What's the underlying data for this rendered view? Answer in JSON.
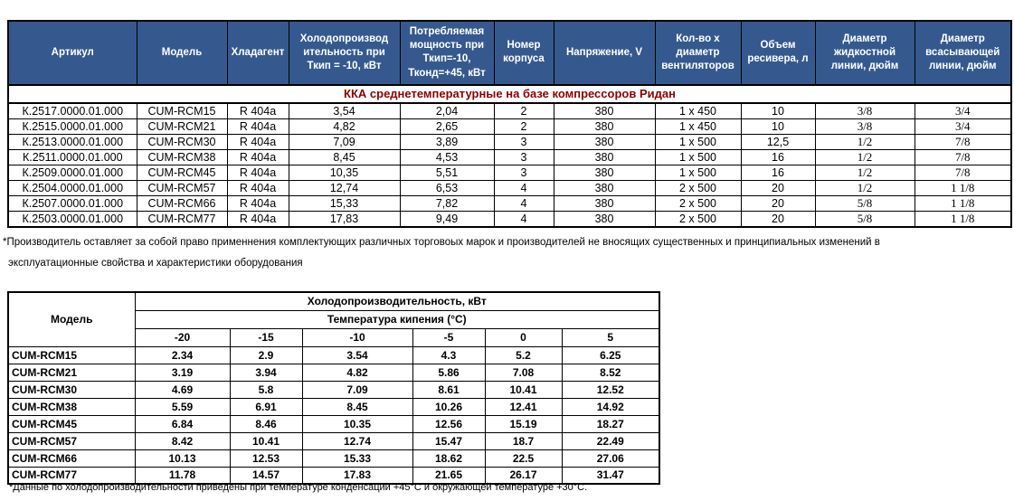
{
  "spec_table": {
    "headers": [
      "Артикул",
      "Модель",
      "Хладагент",
      "Холодопроизвод ительность при Ткип = -10, кВт",
      "Потребляемая мощность при Ткип=-10, Тконд=+45, кВт",
      "Номер корпуса",
      "Напряжение, V",
      "Кол-во х диаметр вентиляторов",
      "Объем ресивера, л",
      "Диаметр жидкостной линии, дюйм",
      "Диаметр всасывающей линии, дюйм"
    ],
    "section_title": "ККА среднетемпературные на базе компрессоров Ридан",
    "section_title_color": "#8B0000",
    "header_bg_color": "#35598E",
    "rows": [
      [
        "К.2517.0000.01.000",
        "CUM-RCM15",
        "R 404a",
        "3,54",
        "2,04",
        "2",
        "380",
        "1 x 450",
        "10",
        "3/8",
        "3/4"
      ],
      [
        "К.2515.0000.01.000",
        "CUM-RCM21",
        "R 404a",
        "4,82",
        "2,65",
        "2",
        "380",
        "1 x 450",
        "10",
        "3/8",
        "3/4"
      ],
      [
        "К.2513.0000.01.000",
        "CUM-RCM30",
        "R 404a",
        "7,09",
        "3,89",
        "3",
        "380",
        "1 x 500",
        "12,5",
        "1/2",
        "7/8"
      ],
      [
        "К.2511.0000.01.000",
        "CUM-RCM38",
        "R 404a",
        "8,45",
        "4,53",
        "3",
        "380",
        "1 x 500",
        "16",
        "1/2",
        "7/8"
      ],
      [
        "К.2509.0000.01.000",
        "CUM-RCM45",
        "R 404a",
        "10,35",
        "5,51",
        "3",
        "380",
        "1 x 500",
        "16",
        "1/2",
        "7/8"
      ],
      [
        "К.2504.0000.01.000",
        "CUM-RCM57",
        "R 404a",
        "12,74",
        "6,53",
        "4",
        "380",
        "2 x 500",
        "20",
        "1/2",
        "1 1/8"
      ],
      [
        "К.2507.0000.01.000",
        "CUM-RCM66",
        "R 404a",
        "15,33",
        "7,82",
        "4",
        "380",
        "2 x 500",
        "20",
        "5/8",
        "1 1/8"
      ],
      [
        "К.2503.0000.01.000",
        "CUM-RCM77",
        "R 404a",
        "17,83",
        "9,49",
        "4",
        "380",
        "2 x 500",
        "20",
        "5/8",
        "1 1/8"
      ]
    ]
  },
  "note1": {
    "line1": "*Производитель оставляет за собой право применнения комплектующих различных торговоых марок и производителей не вносящих существенных и принципиальных изменений в",
    "line2": "эксплуатационные свойства и характеристики оборудования"
  },
  "capacity_table": {
    "model_header": "Модель",
    "span_header": "Холодопроизводительность, кВт",
    "temp_header": "Температура кипения (°С)",
    "temp_columns": [
      "-20",
      "-15",
      "-10",
      "-5",
      "0",
      "5"
    ],
    "rows": [
      [
        "CUM-RCM15",
        "2.34",
        "2.9",
        "3.54",
        "4.3",
        "5.2",
        "6.25"
      ],
      [
        "CUM-RCM21",
        "3.19",
        "3.94",
        "4.82",
        "5.86",
        "7.08",
        "8.52"
      ],
      [
        "CUM-RCM30",
        "4.69",
        "5.8",
        "7.09",
        "8.61",
        "10.41",
        "12.52"
      ],
      [
        "CUM-RCM38",
        "5.59",
        "6.91",
        "8.45",
        "10.26",
        "12.41",
        "14.92"
      ],
      [
        "CUM-RCM45",
        "6.84",
        "8.46",
        "10.35",
        "12.56",
        "15.19",
        "18.27"
      ],
      [
        "CUM-RCM57",
        "8.42",
        "10.41",
        "12.74",
        "15.47",
        "18.7",
        "22.49"
      ],
      [
        "CUM-RCM66",
        "10.13",
        "12.53",
        "15.33",
        "18.62",
        "22.5",
        "27.06"
      ],
      [
        "CUM-RCM77",
        "11.78",
        "14.57",
        "17.83",
        "21.65",
        "26.17",
        "31.47"
      ]
    ]
  },
  "note2": "*Данные по холодопроизводительности приведены при температуре конденсации +45°С и окружающей температуре +30°С."
}
